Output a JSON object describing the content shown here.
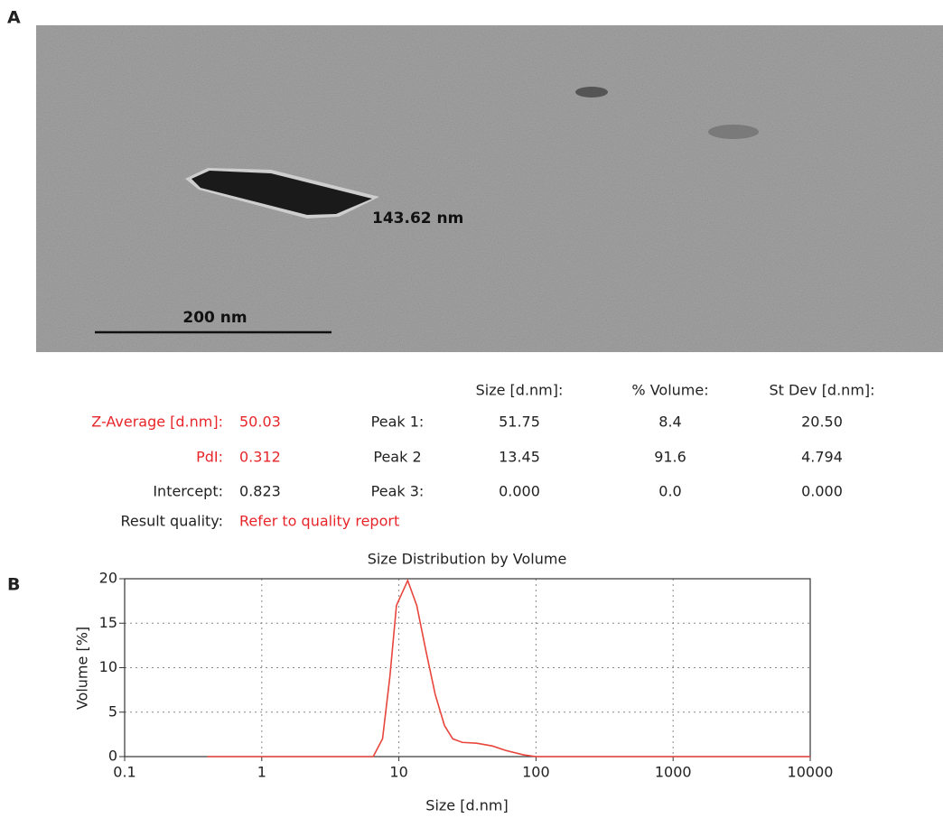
{
  "panel_labels": [
    "A",
    "B"
  ],
  "image": {
    "particle_label": "143.62 nm",
    "scale_label": "200 nm"
  },
  "results": {
    "header": [
      "Size [d.nm]:",
      "% Volume:",
      "St Dev [d.nm]:"
    ],
    "summary": [
      [
        "Z-Average [d.nm]:",
        "50.03"
      ],
      [
        "PdI:",
        "0.312"
      ],
      [
        "Intercept:",
        "0.823"
      ],
      [
        "Result quality:",
        "Refer to quality report"
      ]
    ],
    "peaks": [
      [
        "Peak 1:",
        "51.75",
        "8.4",
        "20.50"
      ],
      [
        "Peak 2",
        "13.45",
        "91.6",
        "4.794"
      ],
      [
        "Peak 3:",
        "0.000",
        "0.0",
        "0.000"
      ]
    ]
  },
  "chart_data": {
    "type": "line",
    "title": "Size Distribution by Volume",
    "xlabel": "Size [d.nm]",
    "ylabel": "Volume [%]",
    "xscale": "log",
    "grid": true,
    "xlim": [
      0.1,
      10000
    ],
    "xticks": [
      0.1,
      1,
      10,
      100,
      1000,
      10000
    ],
    "ylim": [
      0,
      20
    ],
    "yticks": [
      0,
      5,
      10,
      15,
      20
    ],
    "x": [
      0.4,
      1,
      6.5,
      7.6,
      8.6,
      9.6,
      11.6,
      13.5,
      15.7,
      18.4,
      21.5,
      24.7,
      29,
      37,
      48,
      60,
      81,
      100,
      1000,
      10000
    ],
    "series": [
      {
        "color": "#e8453c",
        "values": [
          0,
          0,
          0,
          2,
          9,
          17,
          19.8,
          17,
          12,
          7,
          3.5,
          2,
          1.6,
          1.5,
          1.2,
          0.7,
          0.2,
          0,
          0,
          0
        ]
      }
    ]
  }
}
